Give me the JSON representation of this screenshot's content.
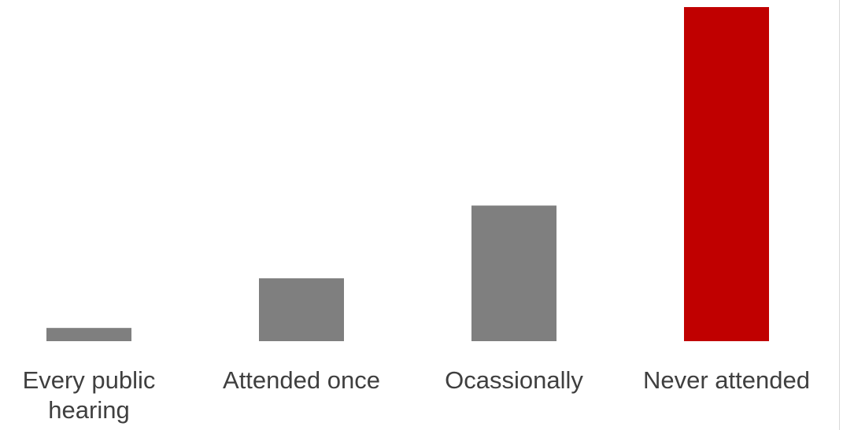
{
  "chart_data": {
    "type": "bar",
    "categories": [
      "Every public hearing",
      "Attended once",
      "Ocassionally",
      "Never attended"
    ],
    "values": [
      4,
      19,
      41,
      101
    ],
    "ylim": [
      0,
      101
    ],
    "grid": false,
    "legend": "none",
    "colors": [
      "#7f7f7f",
      "#7f7f7f",
      "#7f7f7f",
      "#c00000"
    ]
  }
}
